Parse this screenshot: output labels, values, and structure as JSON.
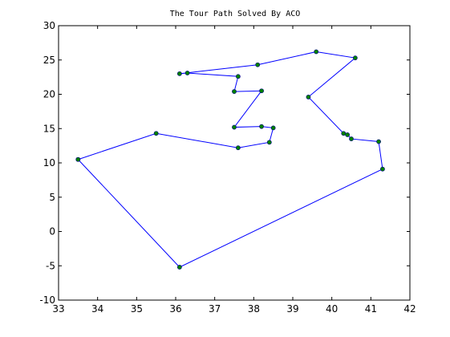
{
  "chart_data": {
    "type": "line",
    "title": "The Tour Path Solved By ACO",
    "xlabel": "",
    "ylabel": "",
    "xlim": [
      33,
      42
    ],
    "ylim": [
      -10,
      30
    ],
    "xticks": [
      33,
      34,
      35,
      36,
      37,
      38,
      39,
      40,
      41,
      42
    ],
    "yticks": [
      -10,
      -5,
      0,
      5,
      10,
      15,
      20,
      25,
      30
    ],
    "grid": false,
    "line_color": "#0000ff",
    "marker_color": "#008000",
    "marker_edge_color": "#00008b",
    "points": [
      {
        "x": 33.5,
        "y": 10.5
      },
      {
        "x": 35.5,
        "y": 14.3
      },
      {
        "x": 37.6,
        "y": 12.2
      },
      {
        "x": 38.4,
        "y": 13.0
      },
      {
        "x": 38.5,
        "y": 15.1
      },
      {
        "x": 38.2,
        "y": 15.3
      },
      {
        "x": 37.5,
        "y": 15.2
      },
      {
        "x": 38.2,
        "y": 20.5
      },
      {
        "x": 37.5,
        "y": 20.4
      },
      {
        "x": 37.6,
        "y": 22.6
      },
      {
        "x": 36.3,
        "y": 23.1
      },
      {
        "x": 36.1,
        "y": 23.0
      },
      {
        "x": 38.1,
        "y": 24.3
      },
      {
        "x": 39.6,
        "y": 26.2
      },
      {
        "x": 40.6,
        "y": 25.3
      },
      {
        "x": 39.4,
        "y": 19.6
      },
      {
        "x": 40.3,
        "y": 14.3
      },
      {
        "x": 40.4,
        "y": 14.1
      },
      {
        "x": 40.5,
        "y": 13.5
      },
      {
        "x": 41.2,
        "y": 13.1
      },
      {
        "x": 41.3,
        "y": 9.1
      },
      {
        "x": 36.1,
        "y": -5.2
      },
      {
        "x": 33.5,
        "y": 10.5
      }
    ]
  }
}
